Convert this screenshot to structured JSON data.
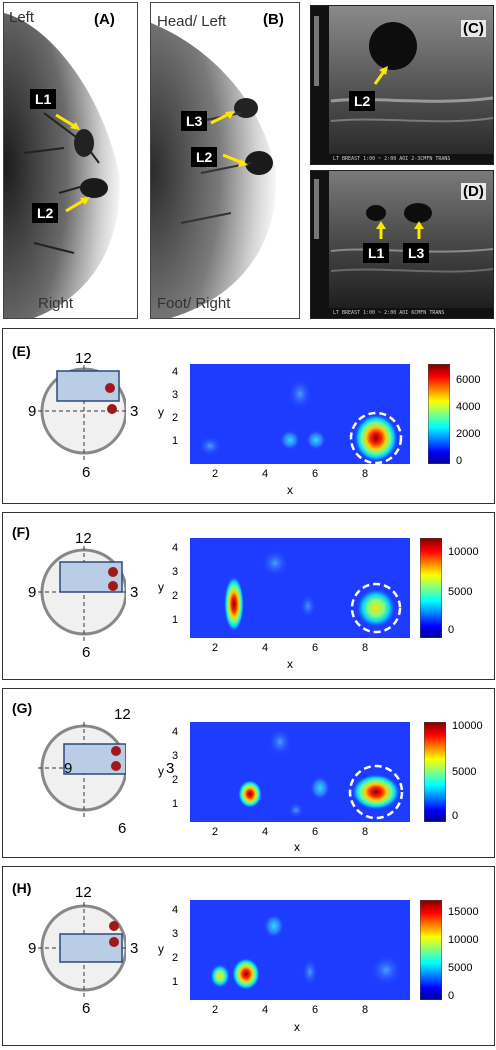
{
  "top": {
    "A": {
      "label": "(A)",
      "left": "Left",
      "right": "Right",
      "markers": [
        "L1",
        "L2"
      ]
    },
    "B": {
      "label": "(B)",
      "top": "Head/ Left",
      "bottom": "Foot/ Right",
      "markers": [
        "L3",
        "L2"
      ]
    },
    "C": {
      "label": "(C)",
      "marker": "L2",
      "caption": "LT BREAST 1:00 ~ 2:00      AOI   2-3CMFN TRANS"
    },
    "D": {
      "label": "(D)",
      "markers": [
        "L1",
        "L3"
      ],
      "caption": "LT BREAST 1:00 ~ 2:00      AOI   6CMFN TRANS"
    }
  },
  "clock_labels": {
    "n12": "12",
    "n3": "3",
    "n6": "6",
    "n9": "9"
  },
  "axis": {
    "x": "x",
    "y": "y",
    "xticks": [
      "2",
      "4",
      "6",
      "8"
    ],
    "yticks": [
      "4",
      "3",
      "2",
      "1"
    ]
  },
  "panels": [
    {
      "label": "(E)",
      "colorbar_ticks": [
        "6000",
        "4000",
        "2000",
        "0"
      ]
    },
    {
      "label": "(F)",
      "colorbar_ticks": [
        "10000",
        "5000",
        "0"
      ]
    },
    {
      "label": "(G)",
      "colorbar_ticks": [
        "10000",
        "5000",
        "0"
      ]
    },
    {
      "label": "(H)",
      "colorbar_ticks": [
        "15000",
        "10000",
        "5000",
        "0"
      ]
    }
  ],
  "colors": {
    "arrow": "#ffe600",
    "dot": "#a01818",
    "probe": "#b9cde6",
    "jet_low": "#0000ff",
    "jet_high": "#800000"
  }
}
